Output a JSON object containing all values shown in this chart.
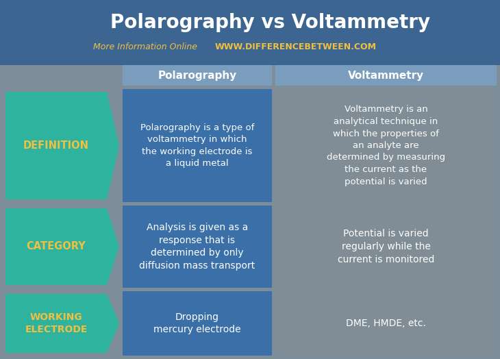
{
  "title": "Polarography vs Voltammetry",
  "subtitle_left": "More Information Online",
  "subtitle_right": "WWW.DIFFERENCEBETWEEN.COM",
  "header_col1": "Polarography",
  "header_col2": "Voltammetry",
  "rows": [
    {
      "label": "DEFINITION",
      "col1": "Polarography is a type of\nvoltammetry in which\nthe working electrode is\na liquid metal",
      "col2": "Voltammetry is an\nanalytical technique in\nwhich the properties of\nan analyte are\ndetermined by measuring\nthe current as the\npotential is varied"
    },
    {
      "label": "CATEGORY",
      "col1": "Analysis is given as a\nresponse that is\ndetermined by only\ndiffusion mass transport",
      "col2": "Potential is varied\nregularly while the\ncurrent is monitored"
    },
    {
      "label": "WORKING\nELECTRODE",
      "col1": "Dropping\nmercury electrode",
      "col2": "DME, HMDE, etc."
    }
  ],
  "bg_color": "#7d8e9a",
  "title_band_color": "#3d6591",
  "header_bg": "#7a9cbd",
  "col1_bg": "#3a6fa8",
  "col2_bg": "#808d96",
  "arrow_color": "#2db39e",
  "title_color": "#ffffff",
  "subtitle_left_color": "#f0c040",
  "subtitle_right_color": "#f0c040",
  "header_text_color": "#ffffff",
  "cell_text_color": "#ffffff",
  "arrow_text_color": "#f0c040",
  "fig_width": 7.3,
  "fig_height": 5.24,
  "dpi": 100
}
